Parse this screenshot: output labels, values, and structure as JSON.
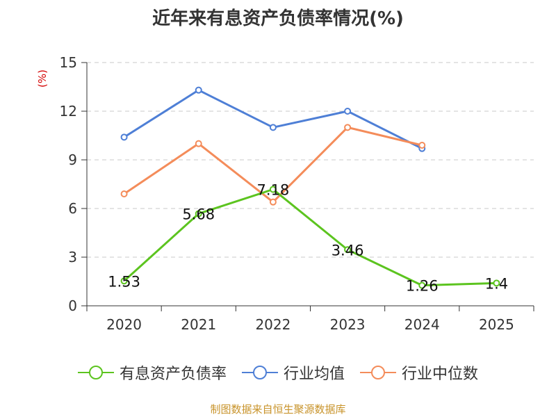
{
  "chart_data": {
    "type": "line",
    "title": "近年来有息资产负债率情况(%)",
    "unit_label": "(%)",
    "categories": [
      "2020",
      "2021",
      "2022",
      "2023",
      "2024",
      "2025"
    ],
    "yticks": [
      "0",
      "3",
      "6",
      "9",
      "12",
      "15"
    ],
    "ylim": [
      0,
      15
    ],
    "grid": true,
    "legend_position": "bottom",
    "series": [
      {
        "name": "有息资产负债率",
        "color": "#5cc41f",
        "values": [
          1.53,
          5.68,
          7.18,
          3.46,
          1.26,
          1.4
        ],
        "labels": [
          "1.53",
          "5.68",
          "7.18",
          "3.46",
          "1.26",
          "1.4"
        ]
      },
      {
        "name": "行业均值",
        "color": "#4e7fd6",
        "values": [
          10.4,
          13.3,
          11.0,
          12.0,
          9.7,
          null
        ]
      },
      {
        "name": "行业中位数",
        "color": "#f48c5a",
        "values": [
          6.9,
          10.0,
          6.4,
          11.0,
          9.9,
          null
        ]
      }
    ],
    "source": "制图数据来自恒生聚源数据库"
  }
}
